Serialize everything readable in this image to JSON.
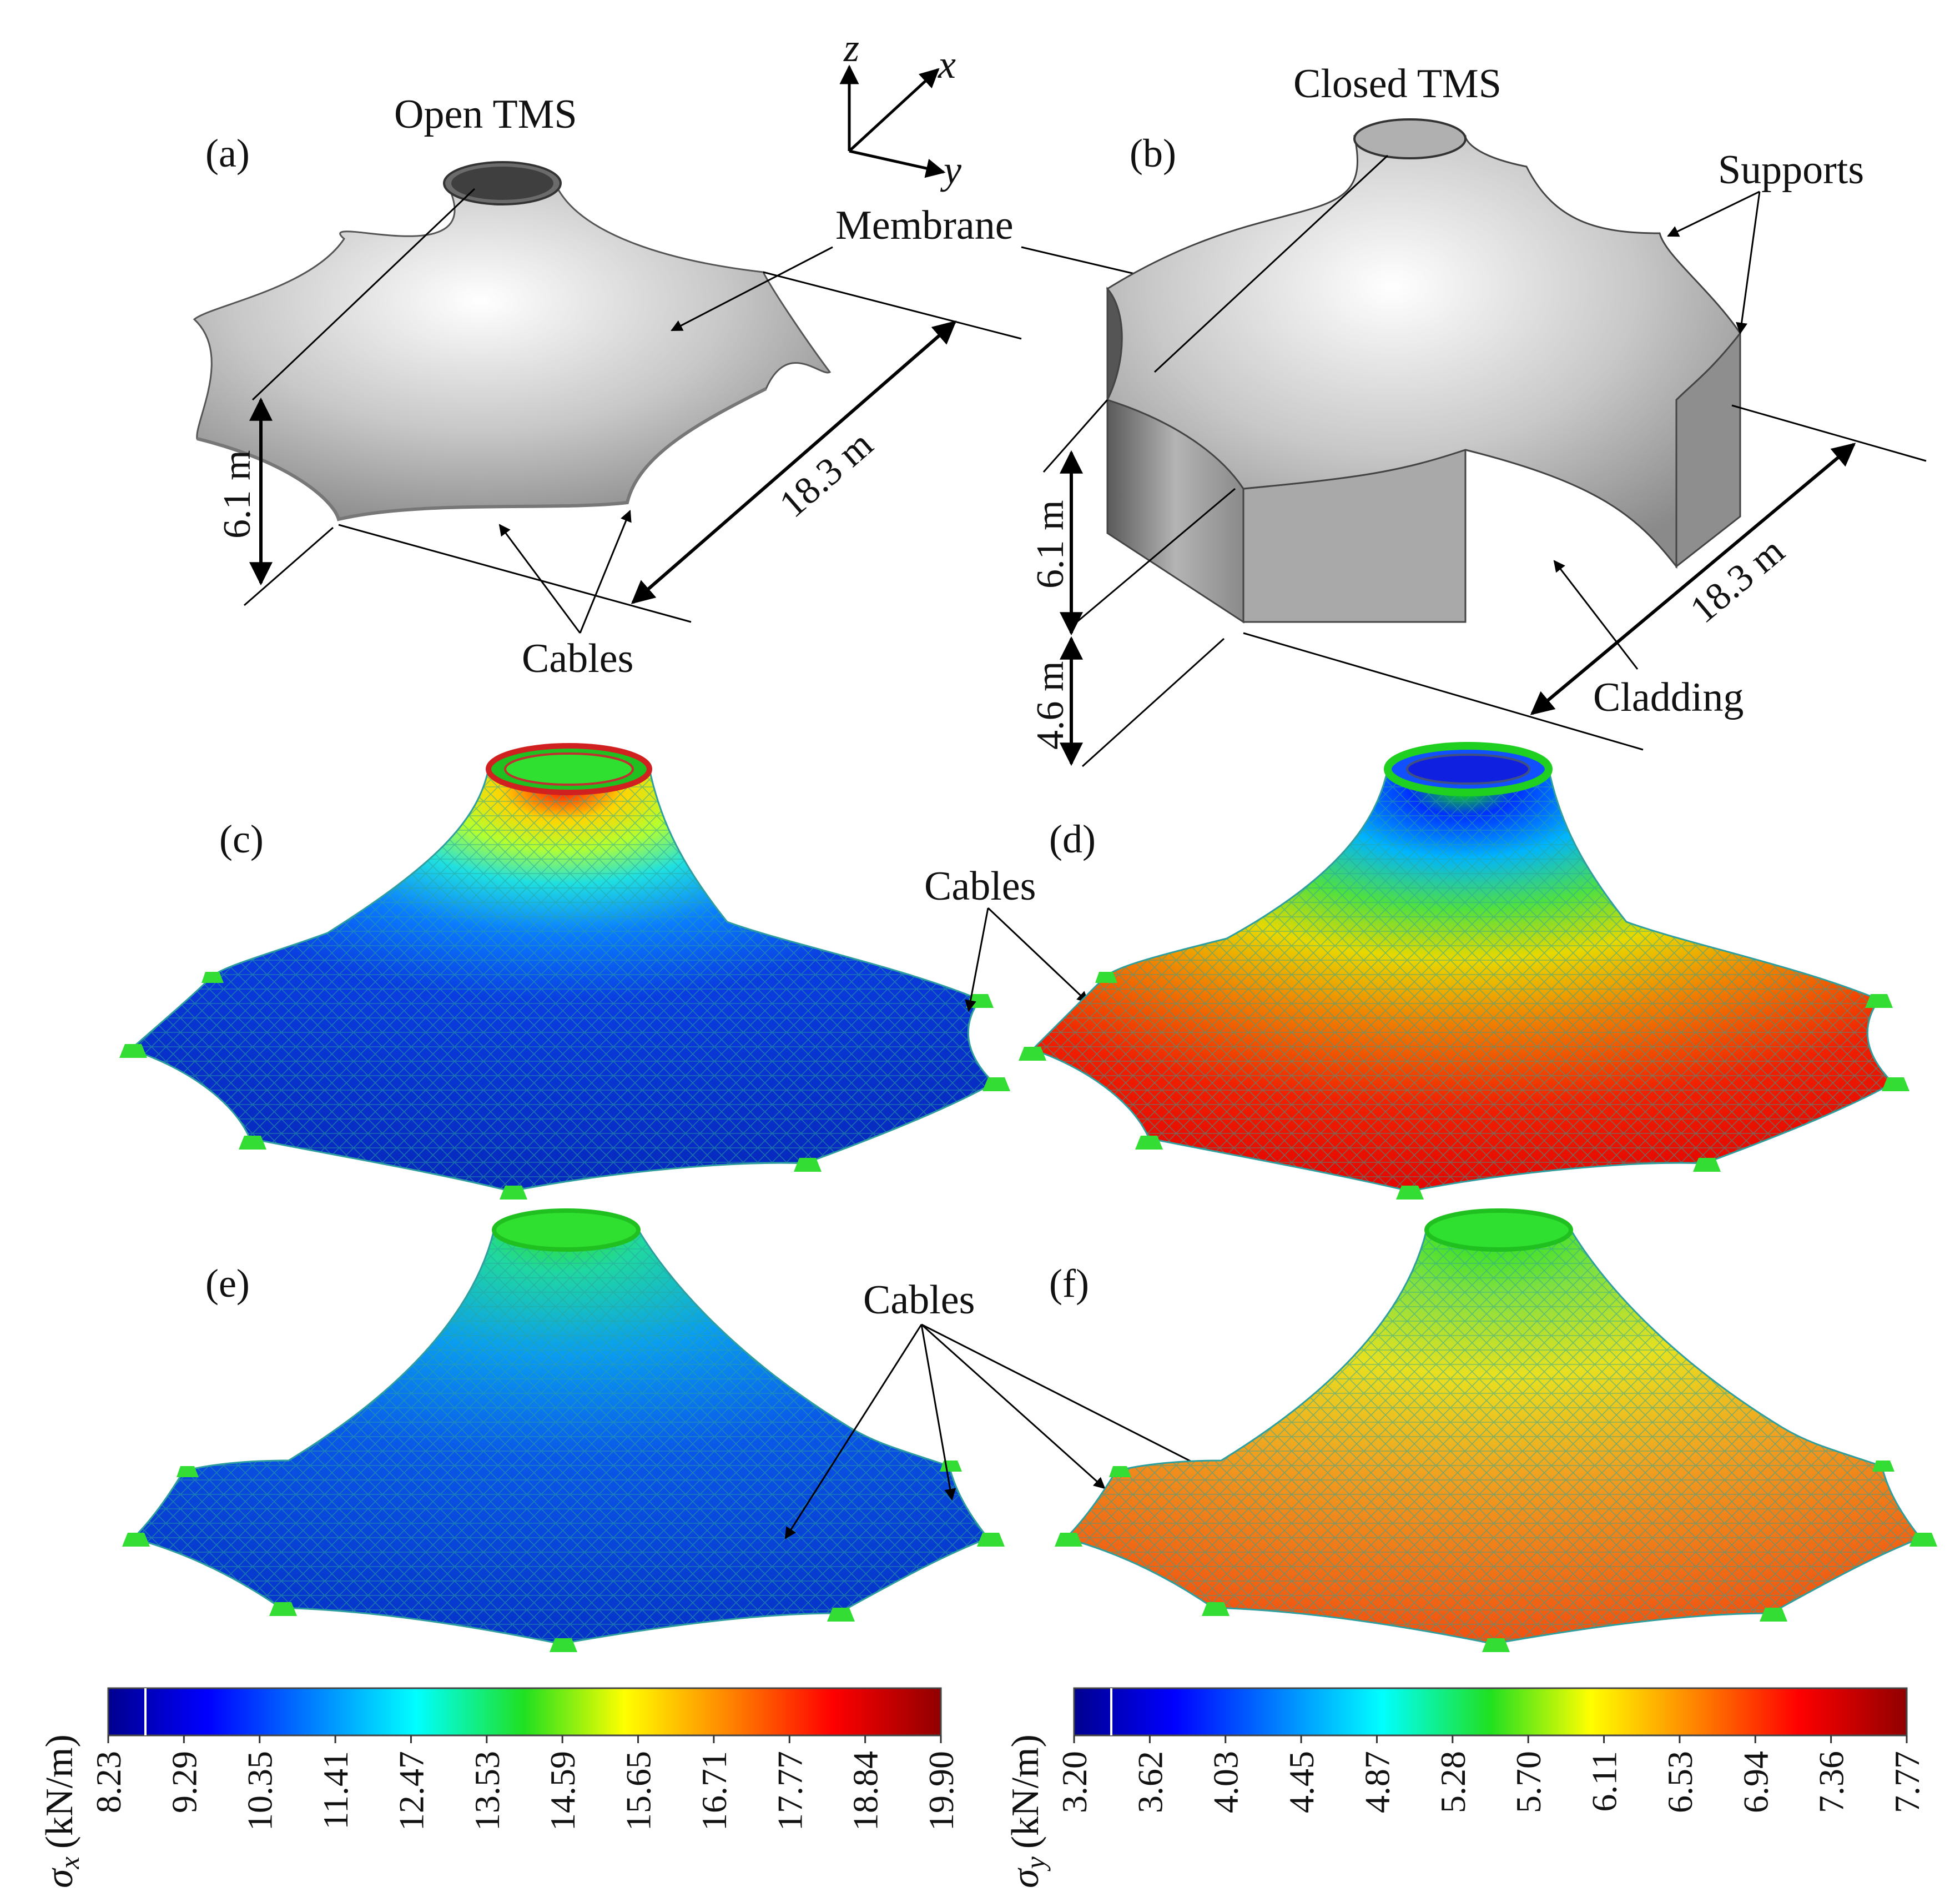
{
  "axes": {
    "z": "z",
    "x": "x",
    "y": "y"
  },
  "panels": {
    "a": {
      "letter": "(a)",
      "title": "Open TMS"
    },
    "b": {
      "letter": "(b)",
      "title": "Closed TMS"
    },
    "c": {
      "letter": "(c)"
    },
    "d": {
      "letter": "(d)"
    },
    "e": {
      "letter": "(e)"
    },
    "f": {
      "letter": "(f)"
    }
  },
  "labels": {
    "membrane": "Membrane",
    "cables": "Cables",
    "supports": "Supports",
    "cladding": "Cladding"
  },
  "dimensions": {
    "open_height": "6.1 m",
    "open_width": "18.3 m",
    "closed_height": "6.1 m",
    "closed_width": "18.3 m",
    "closed_base": "4.6 m"
  },
  "colorbars": [
    {
      "variable": "σ",
      "subscript": "x",
      "unit": "(kN/m)",
      "ticks": [
        "8.23",
        "9.29",
        "10.35",
        "11.41",
        "12.47",
        "13.53",
        "14.59",
        "15.65",
        "16.71",
        "17.77",
        "18.84",
        "19.90"
      ]
    },
    {
      "variable": "σ",
      "subscript": "y",
      "unit": "(kN/m)",
      "ticks": [
        "3.20",
        "3.62",
        "4.03",
        "4.45",
        "4.87",
        "5.28",
        "5.70",
        "6.11",
        "6.53",
        "6.94",
        "7.36",
        "7.77"
      ]
    }
  ],
  "colors": {
    "jet": [
      "#00008f",
      "#0000ff",
      "#0080ff",
      "#00ffff",
      "#80ff80",
      "#ffff00",
      "#ff8000",
      "#ff0000",
      "#800000"
    ],
    "support": "#33dd33",
    "mesh": "#2e9e9e"
  }
}
